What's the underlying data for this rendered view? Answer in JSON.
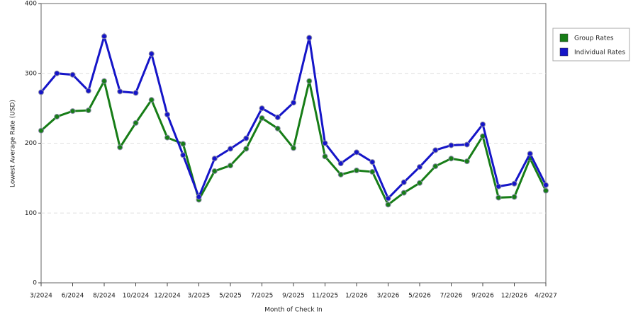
{
  "chart_data": {
    "type": "line",
    "x_label": "Month of Check In",
    "y_label": "Lowest Average Rate (USD)",
    "categories": [
      "3/2024",
      null,
      "6/2024",
      null,
      "8/2024",
      null,
      "10/2024",
      null,
      "12/2024",
      null,
      "3/2025",
      null,
      "5/2025",
      null,
      "7/2025",
      null,
      "9/2025",
      null,
      "11/2025",
      null,
      "1/2026",
      null,
      "3/2026",
      null,
      "5/2026",
      null,
      "7/2026",
      null,
      "9/2026",
      null,
      "12/2026",
      null,
      "4/2027"
    ],
    "series": [
      {
        "name": "Group Rates",
        "color": "#177d17",
        "values": [
          218,
          238,
          246,
          247,
          289,
          194,
          229,
          262,
          208,
          199,
          119,
          160,
          168,
          192,
          236,
          221,
          193,
          289,
          181,
          155,
          161,
          159,
          112,
          129,
          143,
          167,
          178,
          174,
          210,
          122,
          123,
          178,
          132
        ]
      },
      {
        "name": "Individual Rates",
        "color": "#1515c8",
        "values": [
          273,
          300,
          298,
          275,
          353,
          274,
          272,
          328,
          241,
          183,
          123,
          178,
          192,
          207,
          250,
          237,
          258,
          351,
          200,
          171,
          187,
          173,
          121,
          144,
          166,
          190,
          197,
          198,
          227,
          138,
          142,
          185,
          140
        ]
      }
    ],
    "ylim": [
      0,
      400
    ],
    "yticks": [
      0,
      100,
      200,
      300,
      400
    ],
    "grid": true,
    "legend": "right"
  }
}
